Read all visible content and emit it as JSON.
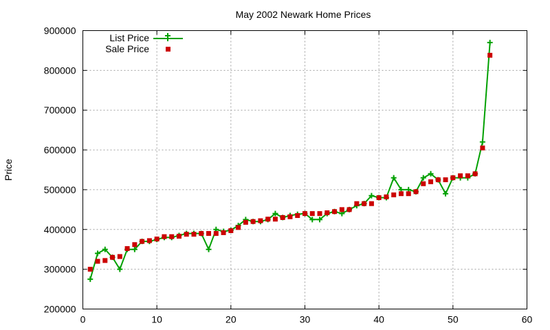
{
  "chart_data": {
    "type": "line",
    "title": "May 2002 Newark Home Prices",
    "xlabel": "",
    "ylabel": "Price",
    "xlim": [
      0,
      60
    ],
    "ylim": [
      200000,
      900000
    ],
    "xticks": [
      0,
      10,
      20,
      30,
      40,
      50,
      60
    ],
    "yticks": [
      200000,
      300000,
      400000,
      500000,
      600000,
      700000,
      800000,
      900000
    ],
    "grid": true,
    "legend_position": "top-left",
    "series": [
      {
        "name": "List Price",
        "style": "line-with-plus-markers",
        "color": "#00a000",
        "x": [
          1,
          2,
          3,
          4,
          5,
          6,
          7,
          8,
          9,
          10,
          11,
          12,
          13,
          14,
          15,
          16,
          17,
          18,
          19,
          20,
          21,
          22,
          23,
          24,
          25,
          26,
          27,
          28,
          29,
          30,
          31,
          32,
          33,
          34,
          35,
          36,
          37,
          38,
          39,
          40,
          41,
          42,
          43,
          44,
          45,
          46,
          47,
          48,
          49,
          50,
          51,
          52,
          53,
          54,
          55
        ],
        "values": [
          275000,
          340000,
          350000,
          330000,
          300000,
          350000,
          350000,
          370000,
          370000,
          375000,
          380000,
          380000,
          385000,
          390000,
          390000,
          390000,
          350000,
          400000,
          395000,
          398000,
          410000,
          425000,
          420000,
          420000,
          425000,
          440000,
          430000,
          435000,
          438000,
          440000,
          425000,
          425000,
          440000,
          445000,
          440000,
          450000,
          460000,
          465000,
          485000,
          480000,
          480000,
          530000,
          500000,
          500000,
          495000,
          530000,
          540000,
          525000,
          490000,
          530000,
          530000,
          530000,
          540000,
          620000,
          870000
        ]
      },
      {
        "name": "Sale Price",
        "style": "square-markers",
        "color": "#cc0000",
        "x": [
          1,
          2,
          3,
          4,
          5,
          6,
          7,
          8,
          9,
          10,
          11,
          12,
          13,
          14,
          15,
          16,
          17,
          18,
          19,
          20,
          21,
          22,
          23,
          24,
          25,
          26,
          27,
          28,
          29,
          30,
          31,
          32,
          33,
          34,
          35,
          36,
          37,
          38,
          39,
          40,
          41,
          42,
          43,
          44,
          45,
          46,
          47,
          48,
          49,
          50,
          51,
          52,
          53,
          54,
          55
        ],
        "values": [
          300000,
          320000,
          322000,
          330000,
          332000,
          352000,
          362000,
          370000,
          372000,
          376000,
          382000,
          382000,
          383000,
          388000,
          388000,
          390000,
          390000,
          390000,
          392000,
          397000,
          405000,
          418000,
          420000,
          422000,
          426000,
          426000,
          430000,
          432000,
          435000,
          440000,
          440000,
          440000,
          442000,
          445000,
          450000,
          450000,
          465000,
          465000,
          465000,
          480000,
          482000,
          487000,
          490000,
          490000,
          495000,
          515000,
          520000,
          525000,
          525000,
          530000,
          535000,
          535000,
          540000,
          605000,
          838000
        ]
      }
    ]
  }
}
